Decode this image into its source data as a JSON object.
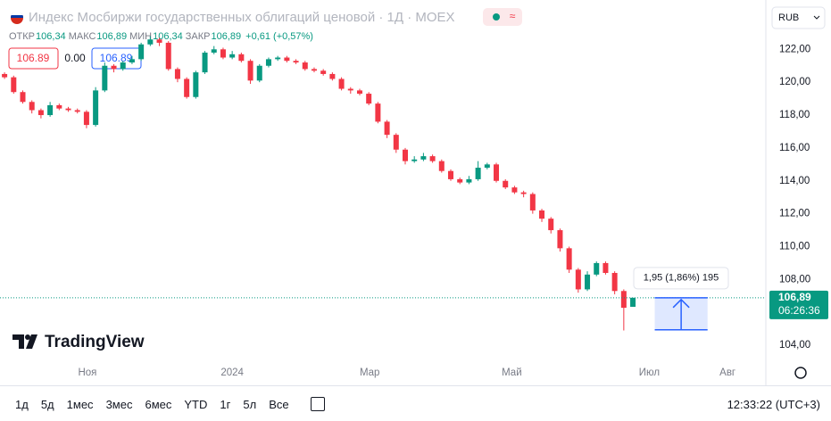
{
  "header": {
    "title": "Индекс Мосбиржи государственных облигаций ценовой · 1Д · MOEX",
    "ohlc": [
      {
        "label": "ОТКР",
        "value": "106,34"
      },
      {
        "label": "МАКС",
        "value": "106,89"
      },
      {
        "label": "МИН",
        "value": "106,34"
      },
      {
        "label": "ЗАКР",
        "value": "106,89"
      }
    ],
    "change": "+0,61 (+0,57%)",
    "bid": "106.89",
    "spread": "0.00",
    "ask": "106.89",
    "currency": "RUB"
  },
  "chart_data": {
    "type": "candlestick",
    "up_color": "#089981",
    "down_color": "#f23645",
    "grid": false,
    "open": [
      120.5,
      120.3,
      119.4,
      118.8,
      118.3,
      118.0,
      118.6,
      118.4,
      118.3,
      118.2,
      117.4,
      119.5,
      121.0,
      120.8,
      121.2,
      121.4,
      122.3,
      122.6,
      122.4,
      120.8,
      120.2,
      119.1,
      120.6,
      121.8,
      122.0,
      121.5,
      121.7,
      121.3,
      120.1,
      121.0,
      121.4,
      121.5,
      121.3,
      121.2,
      120.8,
      120.7,
      120.5,
      120.2,
      119.6,
      119.5,
      119.3,
      118.7,
      117.6,
      116.8,
      115.9,
      115.2,
      115.3,
      115.5,
      115.2,
      114.6,
      114.1,
      113.9,
      114.1,
      114.8,
      115.0,
      114.0,
      113.6,
      113.3,
      113.2,
      112.2,
      111.7,
      111.0,
      109.9,
      108.6,
      107.4,
      108.3,
      109.0,
      108.4,
      107.3,
      106.34
    ],
    "high": [
      120.6,
      120.4,
      119.5,
      118.9,
      118.4,
      118.8,
      118.7,
      118.5,
      118.4,
      118.3,
      119.7,
      121.2,
      121.1,
      121.3,
      121.6,
      122.4,
      122.8,
      122.7,
      122.5,
      120.9,
      120.3,
      120.7,
      121.9,
      122.2,
      122.1,
      121.9,
      121.8,
      121.4,
      121.1,
      121.5,
      121.6,
      121.6,
      121.4,
      121.3,
      120.9,
      120.8,
      120.6,
      120.3,
      119.7,
      119.6,
      119.4,
      118.8,
      117.7,
      116.9,
      116.0,
      115.5,
      115.7,
      115.6,
      115.3,
      114.7,
      114.2,
      114.3,
      115.2,
      115.1,
      115.1,
      114.1,
      113.7,
      113.4,
      113.3,
      112.3,
      111.8,
      111.1,
      110.0,
      108.7,
      108.5,
      109.1,
      109.1,
      108.5,
      107.4,
      106.89
    ],
    "low": [
      120.2,
      119.3,
      118.7,
      118.1,
      117.8,
      117.9,
      118.3,
      118.2,
      118.1,
      117.2,
      117.3,
      119.4,
      120.6,
      120.7,
      121.1,
      121.3,
      122.2,
      122.2,
      120.7,
      120.0,
      119.0,
      119.0,
      120.5,
      121.7,
      121.4,
      121.4,
      121.2,
      119.9,
      120.0,
      120.9,
      121.3,
      121.2,
      121.1,
      120.7,
      120.6,
      120.4,
      120.1,
      119.5,
      119.3,
      119.2,
      118.6,
      117.5,
      116.6,
      115.7,
      115.0,
      115.1,
      115.2,
      115.1,
      114.5,
      114.0,
      113.8,
      113.8,
      114.0,
      114.7,
      113.9,
      113.5,
      113.2,
      113.0,
      112.0,
      111.5,
      110.8,
      109.7,
      108.4,
      107.2,
      107.3,
      108.2,
      108.3,
      107.1,
      104.9,
      106.34
    ],
    "close": [
      120.3,
      119.4,
      118.8,
      118.3,
      118.0,
      118.6,
      118.4,
      118.3,
      118.2,
      117.4,
      119.5,
      121.0,
      120.8,
      121.2,
      121.4,
      122.3,
      122.6,
      122.4,
      120.8,
      120.2,
      119.1,
      120.6,
      121.8,
      122.0,
      121.5,
      121.7,
      121.3,
      120.1,
      121.0,
      121.4,
      121.5,
      121.3,
      121.2,
      120.8,
      120.7,
      120.5,
      120.2,
      119.6,
      119.5,
      119.3,
      118.7,
      117.6,
      116.8,
      115.9,
      115.2,
      115.3,
      115.5,
      115.2,
      114.6,
      114.1,
      113.9,
      114.1,
      114.8,
      115.0,
      114.0,
      113.6,
      113.3,
      113.2,
      112.2,
      111.7,
      111.0,
      109.9,
      108.6,
      107.4,
      108.3,
      109.0,
      108.4,
      107.3,
      106.28,
      106.89
    ],
    "xlim": [
      -0.5,
      83.6
    ],
    "xticks": [
      {
        "value": 9.1,
        "label": "Ноя"
      },
      {
        "value": 25,
        "label": "2024"
      },
      {
        "value": 40.1,
        "label": "Мар"
      },
      {
        "value": 55.7,
        "label": "Май"
      },
      {
        "value": 70.8,
        "label": "Июл"
      },
      {
        "value": 79.4,
        "label": "Авг"
      }
    ],
    "ylim": [
      103.3,
      125
    ],
    "yticks": [
      {
        "value": 104,
        "label": "104,00"
      },
      {
        "value": 106,
        "label": "106,00"
      },
      {
        "value": 108,
        "label": "108,00"
      },
      {
        "value": 110,
        "label": "110,00"
      },
      {
        "value": 112,
        "label": "112,00"
      },
      {
        "value": 114,
        "label": "114,00"
      },
      {
        "value": 116,
        "label": "116,00"
      },
      {
        "value": 118,
        "label": "118,00"
      },
      {
        "value": 120,
        "label": "120,00"
      },
      {
        "value": 122,
        "label": "122,00"
      }
    ],
    "price_label": {
      "value": 106.89,
      "label": "106,89",
      "countdown": "06:26:36",
      "color": "#089981"
    },
    "measure": {
      "low": 104.94,
      "high": 106.89,
      "label": "1,95 (1,86%) 195",
      "color": "#2962ff"
    }
  },
  "logo": "TradingView",
  "toolbar": {
    "ranges": [
      "1д",
      "5д",
      "1мес",
      "3мес",
      "6мес",
      "YTD",
      "1г",
      "5л",
      "Все"
    ],
    "clock": "12:33:22 (UTC+3)"
  }
}
